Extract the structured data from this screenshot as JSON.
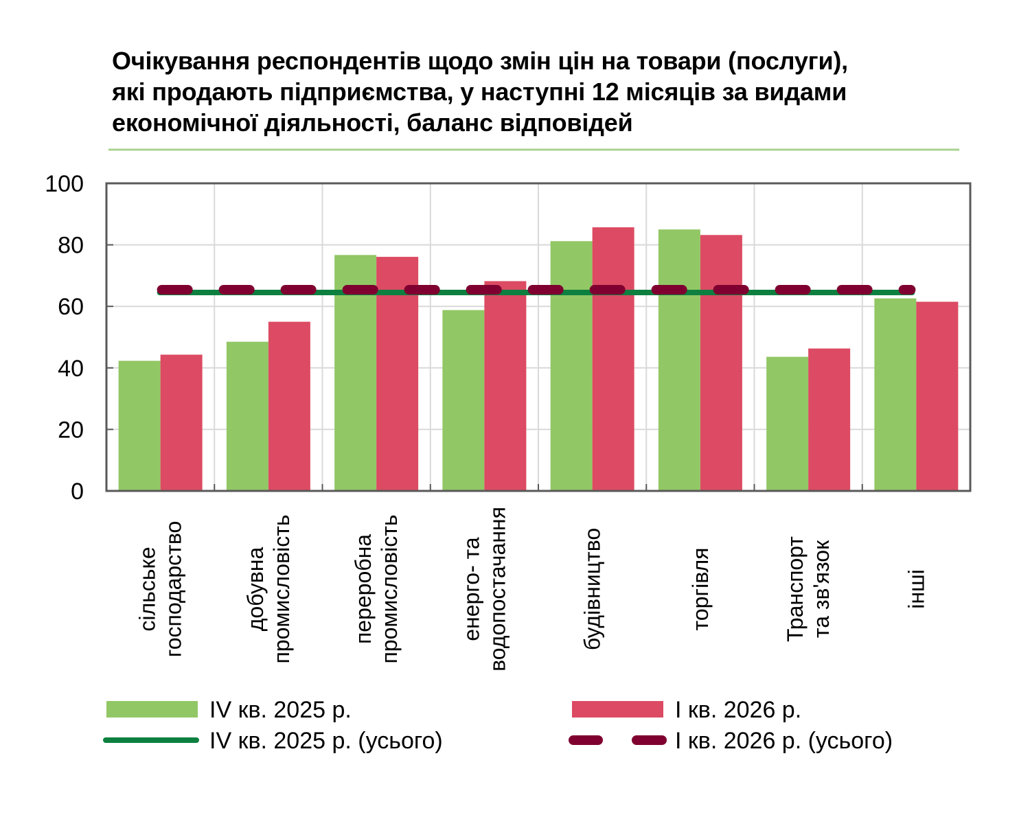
{
  "title": {
    "lines": [
      "Очікування респондентів щодо змін цін на товари (послуги),",
      "які продають підприємства, у наступні 12 місяців за видами",
      "економічної діяльності, баланс відповідей"
    ]
  },
  "colors": {
    "series1": "#92c765",
    "series2": "#dc4b63",
    "total1": "#0d8040",
    "total2": "#7f0030",
    "separator": "#a9d18e",
    "grid": "#d9d9d9",
    "frame": "#595959"
  },
  "chart_data": {
    "type": "bar",
    "title": "Очікування респондентів щодо змін цін на товари (послуги), які продають підприємства, у наступні 12 місяців за видами економічної діяльності, баланс відповідей",
    "categories": [
      [
        "сільське",
        "господарство"
      ],
      [
        "добувна",
        "промисловість"
      ],
      [
        "переробна",
        "промисловість"
      ],
      [
        "енерго- та",
        "водопостачання"
      ],
      [
        "будівництво"
      ],
      [
        "торгівля"
      ],
      [
        "Транспорт",
        "та зв'язок"
      ],
      [
        "інші"
      ]
    ],
    "series": [
      {
        "name": "IV кв. 2025 р.",
        "type": "bar",
        "values": [
          42.3,
          48.5,
          76.7,
          58.8,
          81.2,
          85.0,
          43.6,
          62.6
        ]
      },
      {
        "name": "I кв. 2026 р.",
        "type": "bar",
        "values": [
          44.3,
          55.0,
          76.1,
          68.2,
          85.7,
          83.2,
          46.3,
          61.5
        ]
      },
      {
        "name": "IV кв. 2025 р. (усього)",
        "type": "line",
        "style": "solid",
        "value": 64.5
      },
      {
        "name": "I кв. 2026 р. (усього)",
        "type": "line",
        "style": "dashed",
        "value": 65.4
      }
    ],
    "yticks": [
      "0",
      "20",
      "40",
      "60",
      "80",
      "100"
    ],
    "ytick_values": [
      0,
      20,
      40,
      60,
      80,
      100
    ],
    "ylim": [
      0,
      100
    ],
    "xlabel": "",
    "ylabel": "",
    "grid": true,
    "legend_position": "bottom"
  }
}
